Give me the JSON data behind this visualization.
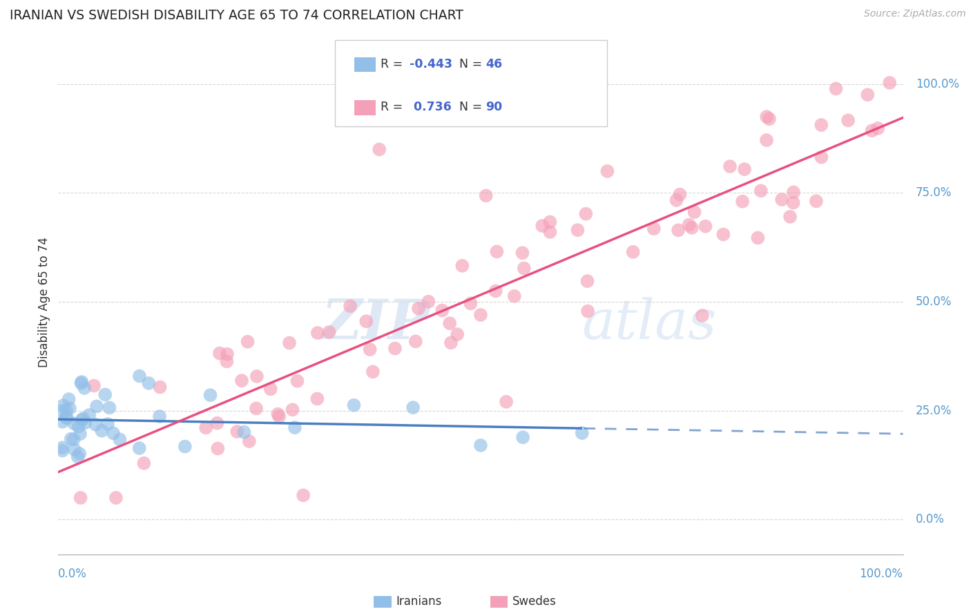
{
  "title": "IRANIAN VS SWEDISH DISABILITY AGE 65 TO 74 CORRELATION CHART",
  "source": "Source: ZipAtlas.com",
  "ylabel": "Disability Age 65 to 74",
  "ytick_labels": [
    "0.0%",
    "25.0%",
    "50.0%",
    "75.0%",
    "100.0%"
  ],
  "ytick_values": [
    0,
    25,
    50,
    75,
    100
  ],
  "watermark_zip": "ZIP",
  "watermark_atlas": "atlas",
  "legend_r_iranian": "-0.443",
  "legend_n_iranian": "46",
  "legend_r_swedish": "0.736",
  "legend_n_swedish": "90",
  "iranian_color": "#92bfe8",
  "swedish_color": "#f4a0b8",
  "iranian_line_color": "#4a7fc0",
  "swedish_line_color": "#e85080",
  "background_color": "#ffffff",
  "grid_color": "#cccccc",
  "title_color": "#222222",
  "axis_label_color": "#5599cc",
  "xlim": [
    0,
    100
  ],
  "ylim": [
    -8,
    108
  ]
}
